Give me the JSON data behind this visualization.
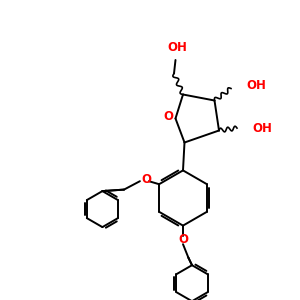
{
  "bg_color": "#ffffff",
  "bond_color": "#000000",
  "o_color": "#ff0000",
  "lw": 1.4,
  "fs": 8.5,
  "figsize": [
    3.0,
    3.0
  ],
  "dpi": 100,
  "xlim": [
    0,
    10
  ],
  "ylim": [
    0,
    10
  ]
}
